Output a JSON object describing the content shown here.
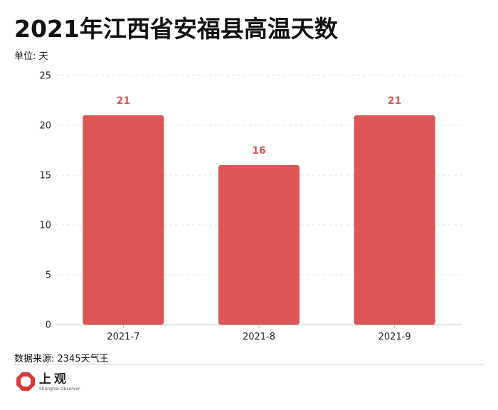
{
  "title": "2021年江西省安福县高温天数",
  "unit_label": "单位: 天",
  "source": "数据来源: 2345天气王",
  "logo": {
    "name_cn": "上观",
    "name_en": "Shanghai Observer",
    "icon": "octagon-ring-logo-icon"
  },
  "colors": {
    "bar": "#dc5656",
    "data_label": "#dc5656",
    "grid": "#e6e6e6",
    "axis": "#bbbbbb"
  },
  "chart_data": {
    "type": "bar",
    "categories": [
      "2021-7",
      "2021-8",
      "2021-9"
    ],
    "values": [
      21,
      16,
      21
    ],
    "ylim": [
      0,
      25
    ],
    "yticks": [
      0,
      5,
      10,
      15,
      20,
      25
    ],
    "grid": true,
    "data_labels": true
  }
}
